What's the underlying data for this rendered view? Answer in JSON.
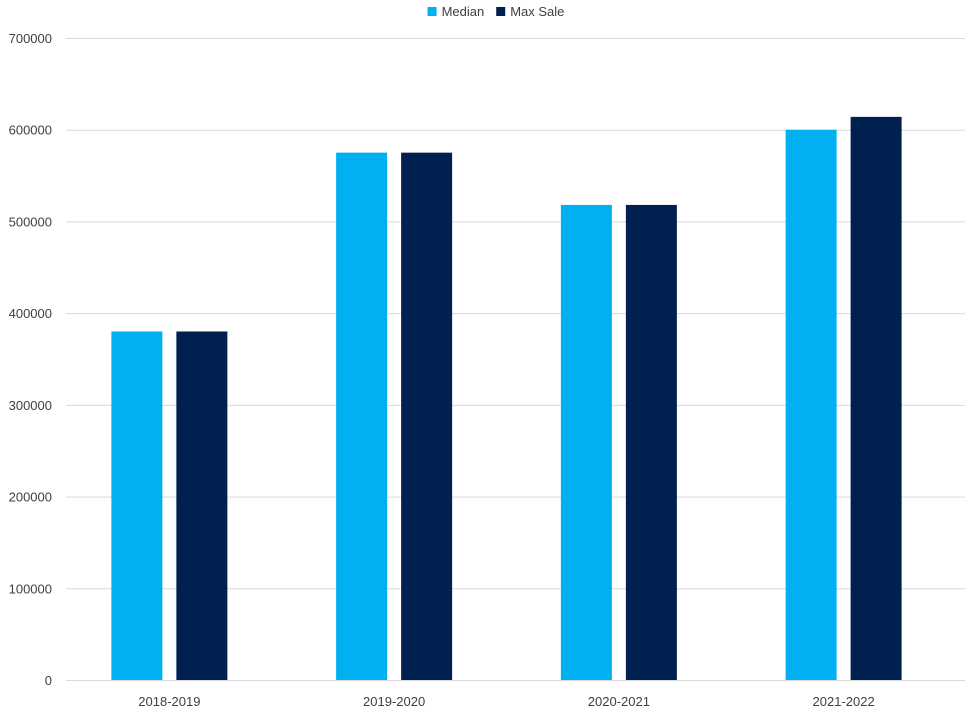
{
  "chart_data": {
    "type": "bar",
    "title": "",
    "xlabel": "",
    "ylabel": "",
    "categories": [
      "2018-2019",
      "2019-2020",
      "2020-2021",
      "2021-2022"
    ],
    "series": [
      {
        "name": "Median",
        "color": "#00b0f0",
        "values": [
          380000,
          575000,
          518000,
          600000
        ]
      },
      {
        "name": "Max Sale",
        "color": "#002050",
        "values": [
          380000,
          575000,
          518000,
          614000
        ]
      }
    ],
    "ylim": [
      0,
      700000
    ],
    "yticks": [
      "0",
      "100000",
      "200000",
      "300000",
      "400000",
      "500000",
      "600000",
      "700000"
    ],
    "grid": true,
    "legend_position": "top"
  }
}
